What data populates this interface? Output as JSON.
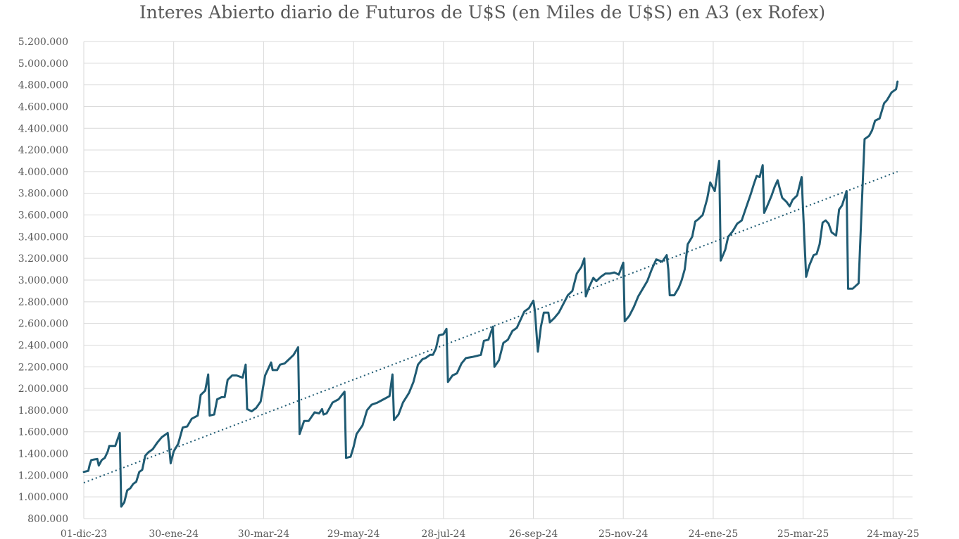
{
  "chart_data": {
    "type": "line",
    "title": "Interes Abierto diario de Futuros de U$S (en Miles de U$S)  en A3 (ex Rofex)",
    "xlabel": "",
    "ylabel": "",
    "ylim": [
      800000,
      5200000
    ],
    "xlim": [
      "2023-12-01",
      "2025-06-06"
    ],
    "y_ticks": [
      "800.000",
      "1.000.000",
      "1.200.000",
      "1.400.000",
      "1.600.000",
      "1.800.000",
      "2.000.000",
      "2.200.000",
      "2.400.000",
      "2.600.000",
      "2.800.000",
      "3.000.000",
      "3.200.000",
      "3.400.000",
      "3.600.000",
      "3.800.000",
      "4.000.000",
      "4.200.000",
      "4.400.000",
      "4.600.000",
      "4.800.000",
      "5.000.000",
      "5.200.000"
    ],
    "x_ticks": [
      {
        "date": "2023-12-01",
        "label": "01-dic-23"
      },
      {
        "date": "2024-01-30",
        "label": "30-ene-24"
      },
      {
        "date": "2024-03-30",
        "label": "30-mar-24"
      },
      {
        "date": "2024-05-29",
        "label": "29-may-24"
      },
      {
        "date": "2024-07-28",
        "label": "28-jul-24"
      },
      {
        "date": "2024-09-26",
        "label": "26-sep-24"
      },
      {
        "date": "2024-11-25",
        "label": "25-nov-24"
      },
      {
        "date": "2025-01-24",
        "label": "24-ene-25"
      },
      {
        "date": "2025-03-25",
        "label": "25-mar-25"
      },
      {
        "date": "2025-05-24",
        "label": "24-may-25"
      }
    ],
    "grid": true,
    "legend": "none",
    "series": [
      {
        "style": "solid",
        "color": "#1f5b73",
        "points": [
          [
            "2023-12-01",
            1230000
          ],
          [
            "2023-12-04",
            1240000
          ],
          [
            "2023-12-05",
            1300000
          ],
          [
            "2023-12-06",
            1340000
          ],
          [
            "2023-12-08",
            1345000
          ],
          [
            "2023-12-10",
            1350000
          ],
          [
            "2023-12-11",
            1290000
          ],
          [
            "2023-12-13",
            1340000
          ],
          [
            "2023-12-15",
            1360000
          ],
          [
            "2023-12-17",
            1420000
          ],
          [
            "2023-12-18",
            1470000
          ],
          [
            "2023-12-20",
            1470000
          ],
          [
            "2023-12-22",
            1470000
          ],
          [
            "2023-12-25",
            1590000
          ],
          [
            "2023-12-26",
            910000
          ],
          [
            "2023-12-28",
            950000
          ],
          [
            "2023-12-30",
            1060000
          ],
          [
            "2024-01-01",
            1080000
          ],
          [
            "2024-01-03",
            1120000
          ],
          [
            "2024-01-05",
            1140000
          ],
          [
            "2024-01-07",
            1230000
          ],
          [
            "2024-01-09",
            1250000
          ],
          [
            "2024-01-11",
            1380000
          ],
          [
            "2024-01-13",
            1410000
          ],
          [
            "2024-01-16",
            1440000
          ],
          [
            "2024-01-19",
            1500000
          ],
          [
            "2024-01-22",
            1550000
          ],
          [
            "2024-01-26",
            1590000
          ],
          [
            "2024-01-27",
            1460000
          ],
          [
            "2024-01-28",
            1310000
          ],
          [
            "2024-01-30",
            1420000
          ],
          [
            "2024-02-02",
            1490000
          ],
          [
            "2024-02-05",
            1640000
          ],
          [
            "2024-02-08",
            1650000
          ],
          [
            "2024-02-11",
            1720000
          ],
          [
            "2024-02-15",
            1750000
          ],
          [
            "2024-02-17",
            1940000
          ],
          [
            "2024-02-20",
            1980000
          ],
          [
            "2024-02-22",
            2130000
          ],
          [
            "2024-02-23",
            1750000
          ],
          [
            "2024-02-26",
            1760000
          ],
          [
            "2024-02-28",
            1900000
          ],
          [
            "2024-03-02",
            1920000
          ],
          [
            "2024-03-04",
            1920000
          ],
          [
            "2024-03-06",
            2080000
          ],
          [
            "2024-03-09",
            2120000
          ],
          [
            "2024-03-12",
            2120000
          ],
          [
            "2024-03-16",
            2100000
          ],
          [
            "2024-03-18",
            2220000
          ],
          [
            "2024-03-19",
            1810000
          ],
          [
            "2024-03-22",
            1790000
          ],
          [
            "2024-03-25",
            1820000
          ],
          [
            "2024-03-28",
            1880000
          ],
          [
            "2024-03-31",
            2120000
          ],
          [
            "2024-04-02",
            2180000
          ],
          [
            "2024-04-04",
            2240000
          ],
          [
            "2024-04-05",
            2170000
          ],
          [
            "2024-04-08",
            2170000
          ],
          [
            "2024-04-10",
            2220000
          ],
          [
            "2024-04-13",
            2230000
          ],
          [
            "2024-04-16",
            2270000
          ],
          [
            "2024-04-19",
            2310000
          ],
          [
            "2024-04-22",
            2380000
          ],
          [
            "2024-04-23",
            1580000
          ],
          [
            "2024-04-26",
            1700000
          ],
          [
            "2024-04-29",
            1700000
          ],
          [
            "2024-05-03",
            1780000
          ],
          [
            "2024-05-06",
            1770000
          ],
          [
            "2024-05-08",
            1810000
          ],
          [
            "2024-05-09",
            1760000
          ],
          [
            "2024-05-11",
            1770000
          ],
          [
            "2024-05-13",
            1820000
          ],
          [
            "2024-05-15",
            1870000
          ],
          [
            "2024-05-19",
            1900000
          ],
          [
            "2024-05-23",
            1970000
          ],
          [
            "2024-05-24",
            1360000
          ],
          [
            "2024-05-27",
            1370000
          ],
          [
            "2024-05-29",
            1460000
          ],
          [
            "2024-05-31",
            1580000
          ],
          [
            "2024-06-04",
            1660000
          ],
          [
            "2024-06-07",
            1800000
          ],
          [
            "2024-06-10",
            1850000
          ],
          [
            "2024-06-14",
            1870000
          ],
          [
            "2024-06-18",
            1900000
          ],
          [
            "2024-06-22",
            1930000
          ],
          [
            "2024-06-24",
            2130000
          ],
          [
            "2024-06-25",
            1710000
          ],
          [
            "2024-06-28",
            1760000
          ],
          [
            "2024-07-01",
            1870000
          ],
          [
            "2024-07-05",
            1960000
          ],
          [
            "2024-07-08",
            2060000
          ],
          [
            "2024-07-11",
            2220000
          ],
          [
            "2024-07-14",
            2270000
          ],
          [
            "2024-07-16",
            2280000
          ],
          [
            "2024-07-19",
            2310000
          ],
          [
            "2024-07-21",
            2310000
          ],
          [
            "2024-07-23",
            2370000
          ],
          [
            "2024-07-25",
            2490000
          ],
          [
            "2024-07-28",
            2500000
          ],
          [
            "2024-07-30",
            2550000
          ],
          [
            "2024-07-31",
            2060000
          ],
          [
            "2024-08-03",
            2120000
          ],
          [
            "2024-08-06",
            2140000
          ],
          [
            "2024-08-09",
            2230000
          ],
          [
            "2024-08-12",
            2280000
          ],
          [
            "2024-08-16",
            2290000
          ],
          [
            "2024-08-19",
            2300000
          ],
          [
            "2024-08-22",
            2310000
          ],
          [
            "2024-08-24",
            2440000
          ],
          [
            "2024-08-27",
            2450000
          ],
          [
            "2024-08-30",
            2570000
          ],
          [
            "2024-08-31",
            2200000
          ],
          [
            "2024-09-03",
            2260000
          ],
          [
            "2024-09-06",
            2420000
          ],
          [
            "2024-09-09",
            2450000
          ],
          [
            "2024-09-12",
            2530000
          ],
          [
            "2024-09-15",
            2560000
          ],
          [
            "2024-09-18",
            2650000
          ],
          [
            "2024-09-20",
            2710000
          ],
          [
            "2024-09-23",
            2740000
          ],
          [
            "2024-09-26",
            2810000
          ],
          [
            "2024-09-27",
            2720000
          ],
          [
            "2024-09-29",
            2340000
          ],
          [
            "2024-10-01",
            2570000
          ],
          [
            "2024-10-03",
            2700000
          ],
          [
            "2024-10-06",
            2700000
          ],
          [
            "2024-10-07",
            2610000
          ],
          [
            "2024-10-10",
            2650000
          ],
          [
            "2024-10-13",
            2700000
          ],
          [
            "2024-10-16",
            2780000
          ],
          [
            "2024-10-19",
            2860000
          ],
          [
            "2024-10-22",
            2900000
          ],
          [
            "2024-10-25",
            3060000
          ],
          [
            "2024-10-28",
            3120000
          ],
          [
            "2024-10-30",
            3200000
          ],
          [
            "2024-10-31",
            2850000
          ],
          [
            "2024-11-02",
            2930000
          ],
          [
            "2024-11-05",
            3020000
          ],
          [
            "2024-11-07",
            2990000
          ],
          [
            "2024-11-10",
            3030000
          ],
          [
            "2024-11-13",
            3060000
          ],
          [
            "2024-11-16",
            3060000
          ],
          [
            "2024-11-19",
            3070000
          ],
          [
            "2024-11-22",
            3050000
          ],
          [
            "2024-11-25",
            3160000
          ],
          [
            "2024-11-26",
            2620000
          ],
          [
            "2024-11-29",
            2670000
          ],
          [
            "2024-12-02",
            2750000
          ],
          [
            "2024-12-05",
            2850000
          ],
          [
            "2024-12-08",
            2920000
          ],
          [
            "2024-12-11",
            2990000
          ],
          [
            "2024-12-14",
            3100000
          ],
          [
            "2024-12-17",
            3190000
          ],
          [
            "2024-12-21",
            3170000
          ],
          [
            "2024-12-24",
            3230000
          ],
          [
            "2024-12-25",
            3100000
          ],
          [
            "2024-12-26",
            2860000
          ],
          [
            "2024-12-29",
            2860000
          ],
          [
            "2025-01-01",
            2930000
          ],
          [
            "2025-01-03",
            3000000
          ],
          [
            "2025-01-05",
            3100000
          ],
          [
            "2025-01-07",
            3330000
          ],
          [
            "2025-01-10",
            3400000
          ],
          [
            "2025-01-12",
            3540000
          ],
          [
            "2025-01-14",
            3560000
          ],
          [
            "2025-01-17",
            3600000
          ],
          [
            "2025-01-20",
            3750000
          ],
          [
            "2025-01-22",
            3900000
          ],
          [
            "2025-01-25",
            3820000
          ],
          [
            "2025-01-28",
            4100000
          ],
          [
            "2025-01-29",
            3180000
          ],
          [
            "2025-02-01",
            3280000
          ],
          [
            "2025-02-03",
            3400000
          ],
          [
            "2025-02-06",
            3450000
          ],
          [
            "2025-02-09",
            3520000
          ],
          [
            "2025-02-12",
            3550000
          ],
          [
            "2025-02-15",
            3670000
          ],
          [
            "2025-02-18",
            3790000
          ],
          [
            "2025-02-20",
            3880000
          ],
          [
            "2025-02-22",
            3960000
          ],
          [
            "2025-02-24",
            3950000
          ],
          [
            "2025-02-26",
            4060000
          ],
          [
            "2025-02-27",
            3620000
          ],
          [
            "2025-03-01",
            3680000
          ],
          [
            "2025-03-04",
            3780000
          ],
          [
            "2025-03-06",
            3860000
          ],
          [
            "2025-03-08",
            3920000
          ],
          [
            "2025-03-11",
            3760000
          ],
          [
            "2025-03-14",
            3720000
          ],
          [
            "2025-03-16",
            3680000
          ],
          [
            "2025-03-18",
            3740000
          ],
          [
            "2025-03-21",
            3780000
          ],
          [
            "2025-03-24",
            3950000
          ],
          [
            "2025-03-25",
            3640000
          ],
          [
            "2025-03-27",
            3030000
          ],
          [
            "2025-03-29",
            3130000
          ],
          [
            "2025-04-01",
            3230000
          ],
          [
            "2025-04-03",
            3240000
          ],
          [
            "2025-04-05",
            3330000
          ],
          [
            "2025-04-07",
            3530000
          ],
          [
            "2025-04-09",
            3550000
          ],
          [
            "2025-04-11",
            3520000
          ],
          [
            "2025-04-13",
            3440000
          ],
          [
            "2025-04-16",
            3410000
          ],
          [
            "2025-04-18",
            3650000
          ],
          [
            "2025-04-20",
            3690000
          ],
          [
            "2025-04-23",
            3820000
          ],
          [
            "2025-04-24",
            2920000
          ],
          [
            "2025-04-27",
            2920000
          ],
          [
            "2025-05-01",
            2970000
          ],
          [
            "2025-05-03",
            3640000
          ],
          [
            "2025-05-05",
            4300000
          ],
          [
            "2025-05-08",
            4330000
          ],
          [
            "2025-05-10",
            4380000
          ],
          [
            "2025-05-12",
            4470000
          ],
          [
            "2025-05-15",
            4490000
          ],
          [
            "2025-05-18",
            4630000
          ],
          [
            "2025-05-20",
            4660000
          ],
          [
            "2025-05-23",
            4730000
          ],
          [
            "2025-05-26",
            4760000
          ],
          [
            "2025-05-27",
            4830000
          ]
        ]
      },
      {
        "style": "dotted",
        "color": "#1f5b73",
        "points": [
          [
            "2023-12-01",
            1130000
          ],
          [
            "2025-05-27",
            4000000
          ]
        ]
      }
    ]
  }
}
